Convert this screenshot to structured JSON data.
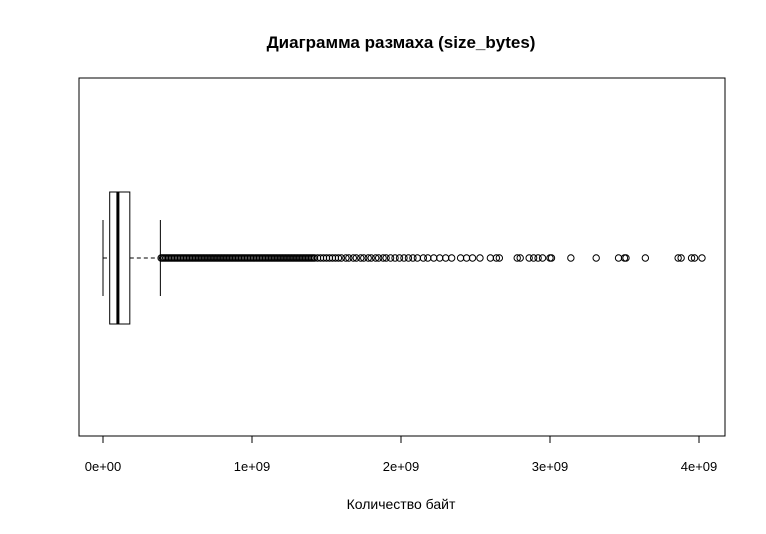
{
  "chart_data": {
    "type": "boxplot",
    "orientation": "horizontal",
    "title": "Диаграмма размаха (size_bytes)",
    "xlabel": "Количество байт",
    "ylabel": "",
    "xlim": [
      -160000000,
      4200000000
    ],
    "x_ticks": [
      {
        "value": 0,
        "label": "0e+00"
      },
      {
        "value": 1000000000,
        "label": "1e+09"
      },
      {
        "value": 2000000000,
        "label": "2e+09"
      },
      {
        "value": 3000000000,
        "label": "3e+09"
      },
      {
        "value": 4000000000,
        "label": "4e+09"
      }
    ],
    "box": {
      "whisker_low": 0,
      "q1": 45000000,
      "median": 100000000,
      "q3": 180000000,
      "whisker_high": 385000000
    },
    "outliers": [
      390000000,
      400000000,
      410000000,
      420000000,
      430000000,
      440000000,
      450000000,
      460000000,
      470000000,
      480000000,
      490000000,
      500000000,
      510000000,
      520000000,
      530000000,
      540000000,
      550000000,
      560000000,
      570000000,
      580000000,
      590000000,
      600000000,
      610000000,
      620000000,
      630000000,
      640000000,
      650000000,
      660000000,
      670000000,
      680000000,
      690000000,
      700000000,
      710000000,
      720000000,
      730000000,
      740000000,
      750000000,
      760000000,
      770000000,
      780000000,
      790000000,
      800000000,
      810000000,
      820000000,
      830000000,
      840000000,
      850000000,
      860000000,
      870000000,
      880000000,
      890000000,
      900000000,
      910000000,
      920000000,
      930000000,
      940000000,
      950000000,
      960000000,
      970000000,
      980000000,
      990000000,
      1000000000,
      1010000000,
      1020000000,
      1030000000,
      1040000000,
      1050000000,
      1060000000,
      1070000000,
      1080000000,
      1090000000,
      1100000000,
      1110000000,
      1120000000,
      1130000000,
      1140000000,
      1150000000,
      1160000000,
      1170000000,
      1180000000,
      1190000000,
      1200000000,
      1210000000,
      1220000000,
      1230000000,
      1240000000,
      1250000000,
      1260000000,
      1270000000,
      1280000000,
      1290000000,
      1300000000,
      1310000000,
      1320000000,
      1330000000,
      1340000000,
      1350000000,
      1360000000,
      1370000000,
      1380000000,
      1390000000,
      1400000000,
      1410000000,
      1420000000,
      1440000000,
      1460000000,
      1480000000,
      1500000000,
      1520000000,
      1540000000,
      1560000000,
      1580000000,
      1600000000,
      1630000000,
      1650000000,
      1680000000,
      1700000000,
      1730000000,
      1750000000,
      1780000000,
      1800000000,
      1830000000,
      1850000000,
      1880000000,
      1900000000,
      1930000000,
      1960000000,
      1990000000,
      2020000000,
      2050000000,
      2080000000,
      2110000000,
      2150000000,
      2180000000,
      2220000000,
      2260000000,
      2300000000,
      2340000000,
      2400000000,
      2440000000,
      2480000000,
      2530000000,
      2600000000,
      2640000000,
      2660000000,
      2780000000,
      2800000000,
      2860000000,
      2890000000,
      2920000000,
      2950000000,
      3000000000,
      3010000000,
      3140000000,
      3310000000,
      3460000000,
      3500000000,
      3510000000,
      3640000000,
      3860000000,
      3880000000,
      3950000000,
      3970000000,
      4020000000
    ],
    "legend": "none",
    "grid": false
  }
}
